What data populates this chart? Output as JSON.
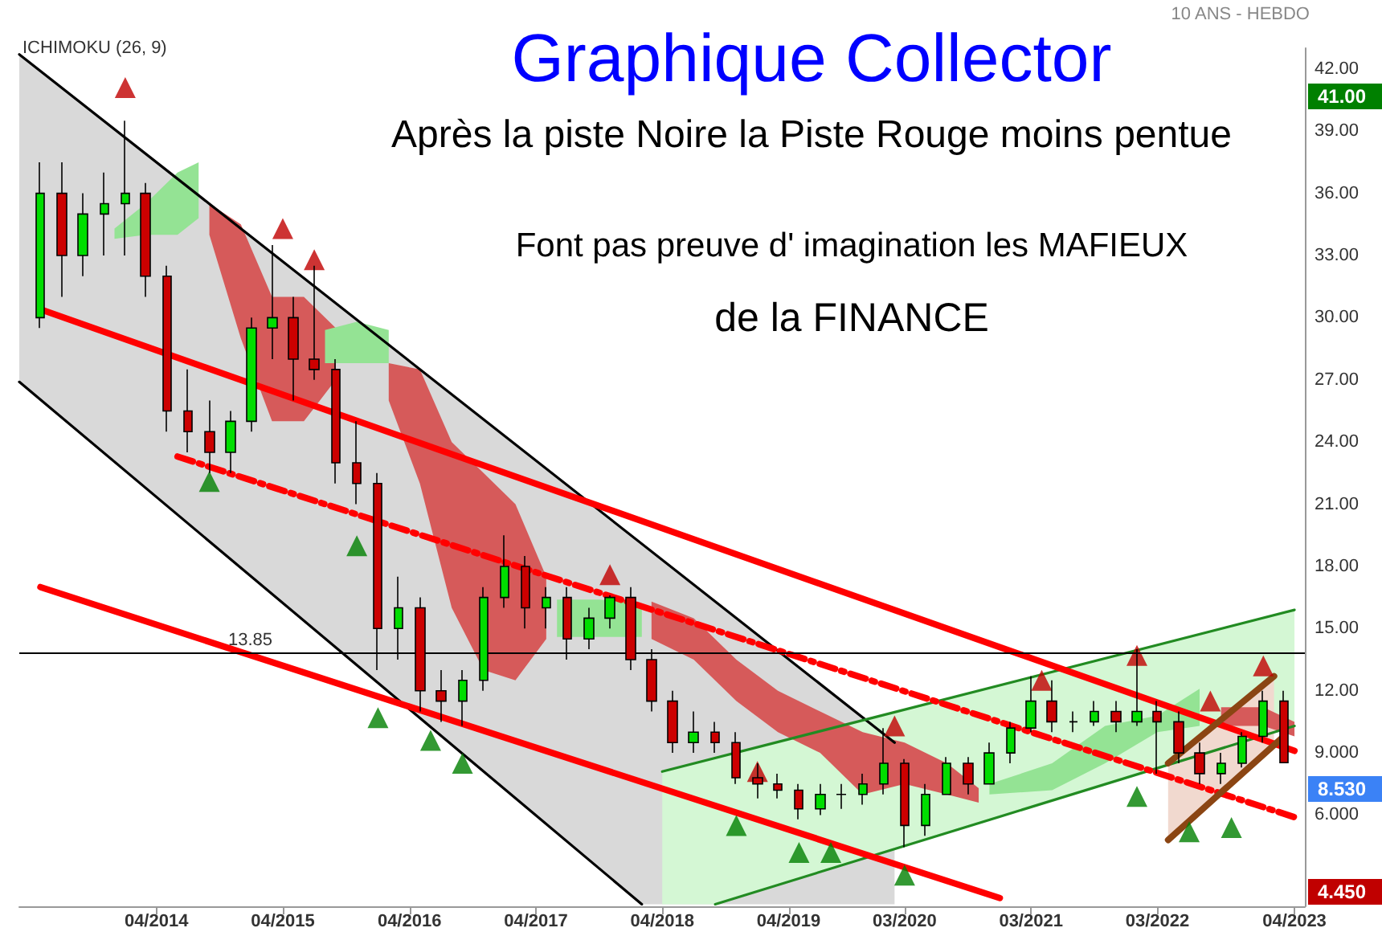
{
  "chart_data": {
    "type": "candlestick",
    "title": "Graphique Collector",
    "subtitle": "Après la piste Noire la Piste Rouge moins pentue",
    "annotations": [
      "ICHIMOKU (26, 9)",
      "10 ANS - HEBDO",
      "Font pas preuve d' imagination les MAFIEUX",
      "de la FINANCE",
      "41.00",
      "8.530",
      "4.450"
    ],
    "x": [
      "2013-05",
      "2013-07",
      "2013-09",
      "2013-11",
      "2014-01",
      "2014-03",
      "2014-05",
      "2014-07",
      "2014-09",
      "2014-11",
      "2015-01",
      "2015-03",
      "2015-05",
      "2015-07",
      "2015-09",
      "2015-11",
      "2016-01",
      "2016-03",
      "2016-05",
      "2016-07",
      "2016-09",
      "2016-11",
      "2017-01",
      "2017-03",
      "2017-05",
      "2017-07",
      "2017-09",
      "2017-11",
      "2018-01",
      "2018-03",
      "2018-05",
      "2018-07",
      "2018-09",
      "2018-11",
      "2019-01",
      "2019-03",
      "2019-05",
      "2019-07",
      "2019-09",
      "2019-11",
      "2020-01",
      "2020-03",
      "2020-05",
      "2020-07",
      "2020-09",
      "2020-11",
      "2021-01",
      "2021-03",
      "2021-05",
      "2021-07",
      "2021-09",
      "2021-11",
      "2022-01",
      "2022-03",
      "2022-05",
      "2022-07",
      "2022-09",
      "2022-11",
      "2023-01",
      "2023-03"
    ],
    "ohlc": [
      [
        30,
        37.5,
        29.5,
        36
      ],
      [
        36,
        37.5,
        31,
        33
      ],
      [
        33,
        36,
        32,
        35
      ],
      [
        35,
        37,
        33,
        35.5
      ],
      [
        35.5,
        39.5,
        33,
        36
      ],
      [
        36,
        36.5,
        31,
        32
      ],
      [
        32,
        32.5,
        24.5,
        25.5
      ],
      [
        25.5,
        27.5,
        23.5,
        24.5
      ],
      [
        24.5,
        26,
        22.5,
        23.5
      ],
      [
        23.5,
        25.5,
        22.5,
        25
      ],
      [
        25,
        30,
        24.5,
        29.5
      ],
      [
        29.5,
        33.5,
        28,
        30
      ],
      [
        30,
        31,
        26,
        28
      ],
      [
        28,
        32.5,
        27,
        27.5
      ],
      [
        27.5,
        28,
        22,
        23
      ],
      [
        23,
        25,
        21,
        22
      ],
      [
        22,
        22.5,
        13,
        15
      ],
      [
        15,
        17.5,
        13.5,
        16
      ],
      [
        16,
        16.5,
        11,
        12
      ],
      [
        12,
        13,
        10.5,
        11.5
      ],
      [
        11.5,
        13,
        10.3,
        12.5
      ],
      [
        12.5,
        17,
        12,
        16.5
      ],
      [
        16.5,
        19.5,
        16,
        18
      ],
      [
        18,
        18.5,
        15,
        16
      ],
      [
        16,
        17,
        15,
        16.5
      ],
      [
        16.5,
        17,
        13.5,
        14.5
      ],
      [
        14.5,
        16,
        14,
        15.5
      ],
      [
        15.5,
        16.6,
        15,
        16.5
      ],
      [
        16.5,
        17,
        13,
        13.5
      ],
      [
        13.5,
        14,
        11,
        11.5
      ],
      [
        11.5,
        12,
        9,
        9.5
      ],
      [
        9.5,
        11,
        9,
        10
      ],
      [
        10,
        10.5,
        9,
        9.5
      ],
      [
        9.5,
        10,
        7.5,
        7.8
      ],
      [
        7.8,
        8.5,
        6.8,
        7.5
      ],
      [
        7.5,
        8,
        6.8,
        7.2
      ],
      [
        7.2,
        7.5,
        5.8,
        6.3
      ],
      [
        6.3,
        7.5,
        6,
        7
      ],
      [
        7,
        7.5,
        6.3,
        7
      ],
      [
        7,
        8,
        6.5,
        7.5
      ],
      [
        7.5,
        10.2,
        7,
        8.5
      ],
      [
        8.5,
        8.7,
        4.45,
        5.5
      ],
      [
        5.5,
        7.5,
        5,
        7
      ],
      [
        7,
        8.8,
        7,
        8.5
      ],
      [
        8.5,
        8.8,
        7,
        7.5
      ],
      [
        7.5,
        9.5,
        7.5,
        9
      ],
      [
        9,
        10.5,
        8.5,
        10.2
      ],
      [
        10.2,
        12.7,
        10,
        11.5
      ],
      [
        11.5,
        12.5,
        10,
        10.5
      ],
      [
        10.5,
        11,
        10,
        10.5
      ],
      [
        10.5,
        11.5,
        10.3,
        11
      ],
      [
        11,
        11.5,
        10,
        10.5
      ],
      [
        10.5,
        14,
        10.3,
        11
      ],
      [
        11,
        11.5,
        8,
        10.5
      ],
      [
        10.5,
        11,
        8.5,
        9
      ],
      [
        9,
        9.5,
        7.5,
        8
      ],
      [
        8,
        9,
        7.5,
        8.5
      ],
      [
        8.5,
        10,
        8.3,
        9.8
      ],
      [
        9.8,
        12,
        9.5,
        11.5
      ],
      [
        11.5,
        12,
        8.5,
        8.53
      ]
    ],
    "series": [
      {
        "type": "line",
        "color": "#d9d9d9",
        "x": [
          "2013-03",
          "2018-02",
          "2020-02"
        ],
        "values": [
          null,
          null,
          null
        ],
        "lower": [
          26.9,
          1.7,
          1.7
        ],
        "upper": [
          42.7,
          19.0,
          9.5
        ]
      },
      {
        "type": "line",
        "color": "#d4f7d4",
        "x": [
          "2018-04",
          "2018-09",
          "2023-04"
        ],
        "values": [
          null,
          null,
          null
        ],
        "lower": [
          1.7,
          1.7,
          10.3
        ],
        "upper": [
          8.1,
          8.8,
          15.9
        ]
      },
      {
        "type": "line",
        "color": "#f1d9cf",
        "x": [
          "2022-04",
          "2023-02"
        ],
        "values": [
          null,
          null
        ],
        "lower": [
          4.8,
          9.3
        ],
        "upper": [
          8.5,
          12.7
        ]
      },
      {
        "type": "line",
        "color": "#d65a5a",
        "x": [
          "2014-09",
          "2014-12",
          "2015-03",
          "2015-06",
          "2015-09"
        ],
        "values": [
          null,
          null,
          null,
          null,
          null
        ],
        "lower": [
          34,
          29,
          25,
          25,
          27
        ],
        "upper": [
          35.5,
          34.5,
          31,
          31,
          29.5
        ]
      },
      {
        "type": "line",
        "color": "#d65a5a",
        "x": [
          "2016-02",
          "2016-05",
          "2016-08",
          "2016-11",
          "2017-02",
          "2017-05"
        ],
        "values": [
          null,
          null,
          null,
          null,
          null,
          null
        ],
        "lower": [
          26,
          22,
          16,
          13,
          12.5,
          14.5
        ],
        "upper": [
          27.8,
          27.5,
          24,
          22.5,
          21,
          17.5
        ]
      },
      {
        "type": "line",
        "color": "#d65a5a",
        "x": [
          "2018-03",
          "2018-07",
          "2018-11",
          "2019-03",
          "2019-07",
          "2019-11",
          "2020-03",
          "2020-07",
          "2020-10"
        ],
        "values": [
          null,
          null,
          null,
          null,
          null,
          null,
          null,
          null,
          null
        ],
        "lower": [
          14.5,
          13.5,
          11.5,
          10,
          9,
          7,
          7.5,
          7,
          6.6
        ],
        "upper": [
          16.3,
          15.5,
          13.5,
          12,
          11,
          10,
          9.5,
          8.5,
          7.3
        ]
      },
      {
        "type": "line",
        "color": "#d65a5a",
        "x": [
          "2022-09",
          "2023-01",
          "2023-04"
        ],
        "values": [
          null,
          null,
          null
        ],
        "lower": [
          10.3,
          10.3,
          9.8
        ],
        "upper": [
          11.2,
          11.2,
          10.5
        ]
      },
      {
        "type": "line",
        "color": "#94e394",
        "x": [
          "2013-12",
          "2014-03",
          "2014-06",
          "2014-08"
        ],
        "values": [
          null,
          null,
          null,
          null
        ],
        "lower": [
          33.8,
          34,
          34,
          34.8
        ],
        "upper": [
          34.3,
          35.5,
          37,
          37.5
        ]
      },
      {
        "type": "line",
        "color": "#94e394",
        "x": [
          "2015-08",
          "2015-11",
          "2016-02"
        ],
        "values": [
          null,
          null,
          null
        ],
        "lower": [
          27.8,
          27.8,
          27.8
        ],
        "upper": [
          29.4,
          29.8,
          29.4
        ]
      },
      {
        "type": "line",
        "color": "#94e394",
        "x": [
          "2017-06",
          "2017-10",
          "2018-02"
        ],
        "values": [
          null,
          null,
          null
        ],
        "lower": [
          14.6,
          14.6,
          14.6
        ],
        "upper": [
          16.4,
          16.4,
          16.2
        ]
      },
      {
        "type": "line",
        "color": "#94e394",
        "x": [
          "2020-11",
          "2021-05",
          "2021-10",
          "2022-03",
          "2022-07"
        ],
        "values": [
          null,
          null,
          null,
          null,
          null
        ],
        "lower": [
          7.0,
          7.2,
          8.5,
          10,
          10.3
        ],
        "upper": [
          7.5,
          8.5,
          10.3,
          10.8,
          12.1
        ]
      },
      {
        "type": "line",
        "color": "#000000",
        "line_style": "solid",
        "x": [
          "2013-03",
          "2020-02"
        ],
        "values": [
          42.7,
          9.5
        ]
      },
      {
        "type": "line",
        "color": "#000000",
        "line_style": "solid",
        "x": [
          "2013-03",
          "2018-02"
        ],
        "values": [
          26.9,
          1.7
        ]
      },
      {
        "type": "line",
        "color": "#228b22",
        "line_style": "solid",
        "x": [
          "2018-04",
          "2023-04"
        ],
        "values": [
          8.1,
          15.9
        ]
      },
      {
        "type": "line",
        "color": "#228b22",
        "line_style": "solid",
        "x": [
          "2018-09",
          "2023-04"
        ],
        "values": [
          1.7,
          10.3
        ]
      },
      {
        "type": "line",
        "color": "#ff0000",
        "line_style": "solid",
        "x": [
          "2013-05",
          "2023-04"
        ],
        "values": [
          30.4,
          9.1
        ]
      },
      {
        "type": "line",
        "color": "#ff0000",
        "line_style": "solid",
        "x": [
          "2013-05",
          "2020-12"
        ],
        "values": [
          17.0,
          2.0
        ]
      },
      {
        "type": "line",
        "color": "#ff0000",
        "line_style": "dashed",
        "x": [
          "2014-06",
          "2023-04"
        ],
        "values": [
          23.3,
          5.9
        ]
      },
      {
        "type": "line",
        "color": "#8b4513",
        "line_style": "solid",
        "x": [
          "2022-04",
          "2023-02"
        ],
        "values": [
          8.5,
          12.7
        ]
      },
      {
        "type": "line",
        "color": "#8b4513",
        "line_style": "solid",
        "x": [
          "2022-04",
          "2023-03"
        ],
        "values": [
          4.8,
          9.8
        ]
      },
      {
        "type": "scatter",
        "color": "#c00000",
        "marker": "triangle",
        "x": [
          "2014-01",
          "2015-04",
          "2015-07",
          "2017-11",
          "2019-01",
          "2020-02",
          "2021-04",
          "2022-01",
          "2022-08",
          "2023-01"
        ],
        "values": [
          41.1,
          34.3,
          32.8,
          17.6,
          8.1,
          10.3,
          12.5,
          13.7,
          11.5,
          13.2
        ]
      },
      {
        "type": "scatter",
        "color": "#008000",
        "marker": "triangle",
        "x": [
          "2014-09",
          "2015-11",
          "2016-01",
          "2016-06",
          "2016-09",
          "2018-11",
          "2019-05",
          "2019-08",
          "2020-03",
          "2022-01",
          "2022-06",
          "2022-10"
        ],
        "values": [
          22.1,
          19.0,
          10.7,
          9.6,
          8.5,
          5.5,
          4.2,
          4.2,
          3.1,
          6.9,
          5.2,
          5.4
        ]
      }
    ],
    "ref_lines": [
      {
        "axis": "y",
        "value": 13.85,
        "label": "13.85",
        "color": "#000000"
      }
    ],
    "xlim": [
      "2013-03",
      "2023-05"
    ],
    "xticks": [
      {
        "value": "2014-04",
        "label": "04/2014"
      },
      {
        "value": "2015-04",
        "label": "04/2015"
      },
      {
        "value": "2016-04",
        "label": "04/2016"
      },
      {
        "value": "2017-04",
        "label": "04/2017"
      },
      {
        "value": "2018-04",
        "label": "04/2018"
      },
      {
        "value": "2019-04",
        "label": "04/2019"
      },
      {
        "value": "2020-03",
        "label": "03/2020"
      },
      {
        "value": "2021-03",
        "label": "03/2021"
      },
      {
        "value": "2022-03",
        "label": "03/2022"
      },
      {
        "value": "2023-04",
        "label": "04/2023"
      }
    ],
    "ylim": [
      1.6,
      43
    ],
    "yticks": [
      {
        "value": 6,
        "label": "6.000"
      },
      {
        "value": 9,
        "label": "9.000"
      },
      {
        "value": 12,
        "label": "12.00"
      },
      {
        "value": 15,
        "label": "15.00"
      },
      {
        "value": 18,
        "label": "18.00"
      },
      {
        "value": 21,
        "label": "21.00"
      },
      {
        "value": 24,
        "label": "24.00"
      },
      {
        "value": 27,
        "label": "27.00"
      },
      {
        "value": 30,
        "label": "30.00"
      },
      {
        "value": 33,
        "label": "33.00"
      },
      {
        "value": 36,
        "label": "36.00"
      },
      {
        "value": 39,
        "label": "39.00"
      },
      {
        "value": 42,
        "label": "42.00"
      }
    ]
  }
}
